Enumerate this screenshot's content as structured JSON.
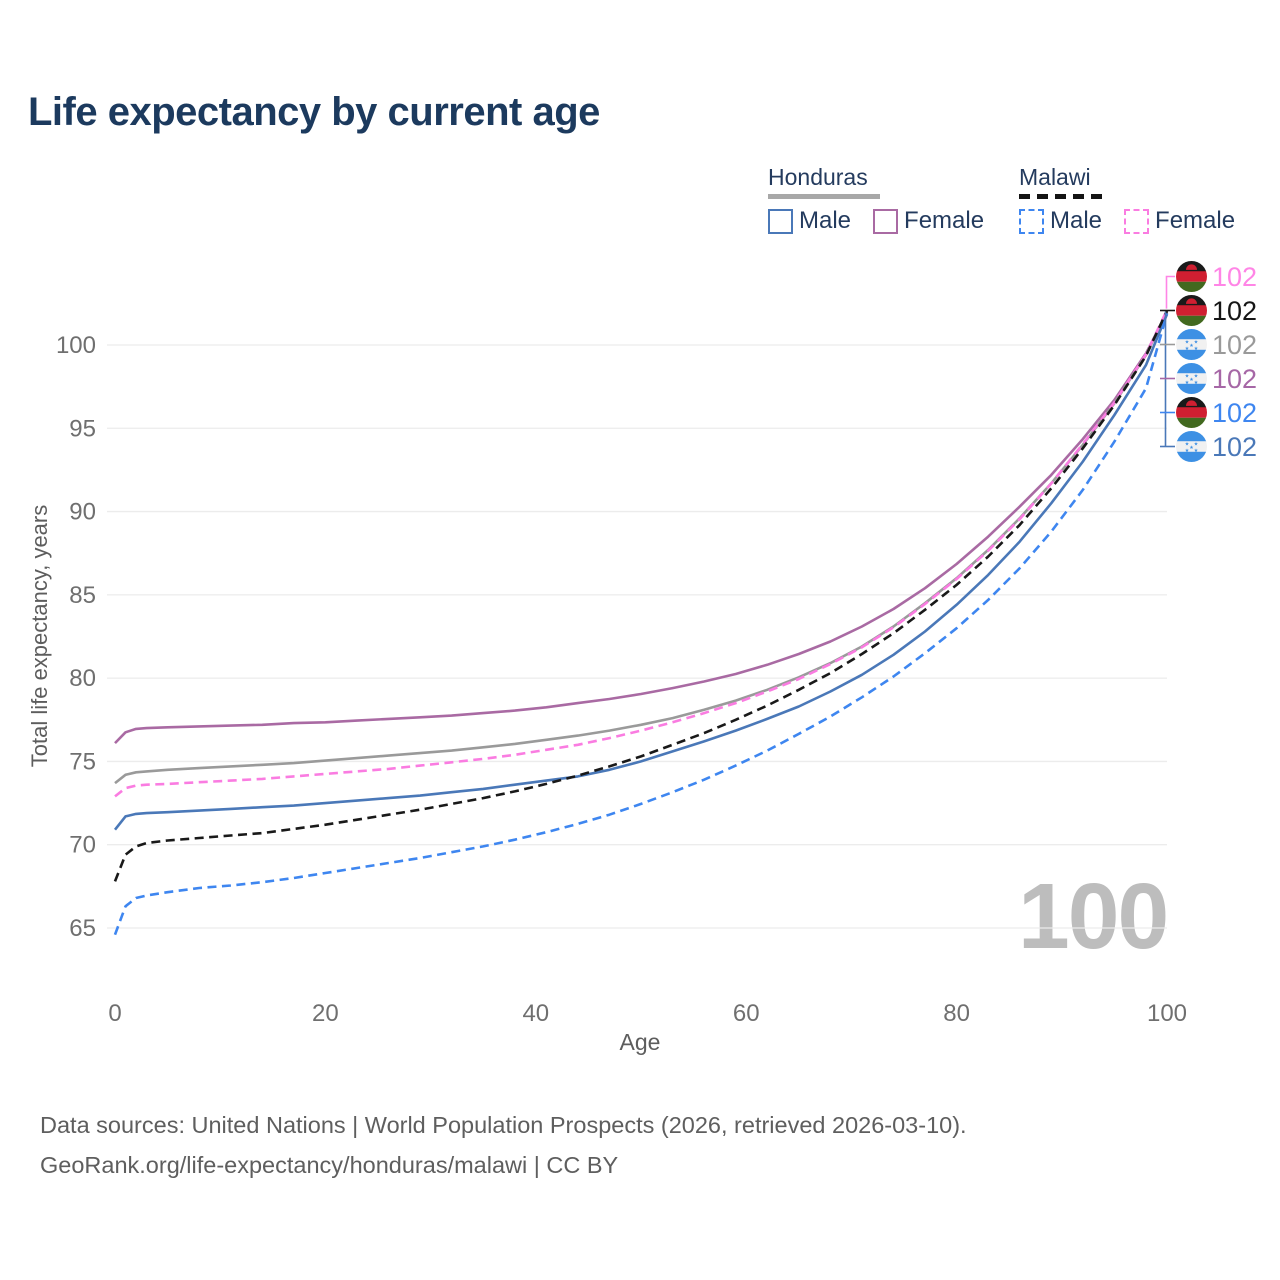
{
  "title": "Life expectancy by current age",
  "legend": {
    "groups": [
      {
        "label": "Honduras",
        "line_style": "solid",
        "underline_color": "#a8a8a8",
        "items": [
          {
            "label": "Male",
            "series": "honduras_male"
          },
          {
            "label": "Female",
            "series": "honduras_female"
          }
        ]
      },
      {
        "label": "Malawi",
        "line_style": "dashed",
        "underline_color": "#141414",
        "items": [
          {
            "label": "Male",
            "series": "malawi_male"
          },
          {
            "label": "Female",
            "series": "malawi_female"
          }
        ]
      }
    ]
  },
  "watermark_age": "100",
  "end_labels": [
    {
      "series": "malawi_female",
      "value": "102",
      "flag": "malawi",
      "color": "#ff85e6"
    },
    {
      "series": "malawi_all",
      "value": "102",
      "flag": "malawi",
      "color": "#161616"
    },
    {
      "series": "honduras_all",
      "value": "102",
      "flag": "honduras",
      "color": "#9a9a9a"
    },
    {
      "series": "honduras_female",
      "value": "102",
      "flag": "honduras",
      "color": "#a667a6"
    },
    {
      "series": "malawi_male",
      "value": "102",
      "flag": "malawi",
      "color": "#3e86f0"
    },
    {
      "series": "honduras_male",
      "value": "102",
      "flag": "honduras",
      "color": "#4a78b8"
    }
  ],
  "flag_colors": {
    "malawi": {
      "top": "#1a1a1a",
      "middle": "#d01f31",
      "bottom": "#42691f",
      "sun": "#d01f31"
    },
    "honduras": {
      "band": "#3d90e4",
      "middle": "#f1f1f1",
      "stars": "#3d90e4"
    }
  },
  "footer": {
    "line1": "Data sources: United Nations | World Population Prospects (2026, retrieved 2026-03-10).",
    "line2": "GeoRank.org/life-expectancy/honduras/malawi | CC BY"
  },
  "chart_data": {
    "type": "line",
    "title": "Life expectancy by current age",
    "xlabel": "Age",
    "ylabel": "Total life expectancy, years",
    "xlim": [
      0,
      100
    ],
    "ylim": [
      63,
      104
    ],
    "xticks": [
      0,
      20,
      40,
      60,
      80,
      100
    ],
    "yticks": [
      65,
      70,
      75,
      80,
      85,
      90,
      95,
      100
    ],
    "grid": "horizontal",
    "legend_position": "top-right",
    "x": [
      0,
      1,
      2,
      3,
      5,
      8,
      11,
      14,
      17,
      20,
      23,
      26,
      29,
      32,
      35,
      38,
      41,
      44,
      47,
      50,
      53,
      56,
      59,
      62,
      65,
      68,
      71,
      74,
      77,
      80,
      83,
      86,
      89,
      92,
      95,
      98,
      100
    ],
    "series": [
      {
        "id": "honduras_female",
        "name": "Honduras Female",
        "country": "Honduras",
        "sex": "Female",
        "color": "#a96aa3",
        "dash": "solid",
        "end_value": 102,
        "values": [
          76.1,
          76.75,
          76.95,
          77.0,
          77.05,
          77.1,
          77.15,
          77.2,
          77.3,
          77.35,
          77.45,
          77.55,
          77.65,
          77.75,
          77.9,
          78.05,
          78.25,
          78.5,
          78.75,
          79.05,
          79.4,
          79.8,
          80.25,
          80.8,
          81.45,
          82.2,
          83.1,
          84.15,
          85.4,
          86.85,
          88.5,
          90.3,
          92.2,
          94.35,
          96.7,
          99.5,
          101.95
        ]
      },
      {
        "id": "honduras_all",
        "name": "Honduras Both sexes",
        "country": "Honduras",
        "sex": "Both",
        "color": "#9a9a9a",
        "dash": "solid",
        "end_value": 102,
        "values": [
          73.7,
          74.2,
          74.35,
          74.4,
          74.5,
          74.6,
          74.7,
          74.8,
          74.9,
          75.05,
          75.2,
          75.35,
          75.5,
          75.65,
          75.85,
          76.05,
          76.3,
          76.55,
          76.85,
          77.2,
          77.6,
          78.1,
          78.65,
          79.3,
          80.05,
          80.9,
          81.9,
          83.1,
          84.5,
          86.0,
          87.7,
          89.6,
          91.7,
          94.0,
          96.5,
          99.4,
          102.0
        ]
      },
      {
        "id": "malawi_female",
        "name": "Malawi Female",
        "country": "Malawi",
        "sex": "Female",
        "color": "#fa7ce1",
        "dash": "dashed",
        "end_value": 102,
        "values": [
          72.9,
          73.4,
          73.55,
          73.6,
          73.65,
          73.75,
          73.85,
          73.95,
          74.1,
          74.25,
          74.4,
          74.55,
          74.75,
          74.95,
          75.15,
          75.4,
          75.7,
          76.0,
          76.4,
          76.85,
          77.35,
          77.9,
          78.5,
          79.2,
          79.95,
          80.85,
          81.85,
          83.05,
          84.45,
          85.95,
          87.65,
          89.55,
          91.7,
          94.05,
          96.55,
          99.45,
          102.1
        ]
      },
      {
        "id": "honduras_male",
        "name": "Honduras Male",
        "country": "Honduras",
        "sex": "Male",
        "color": "#4a78b8",
        "dash": "solid",
        "end_value": 102,
        "values": [
          70.9,
          71.7,
          71.85,
          71.9,
          71.95,
          72.05,
          72.15,
          72.25,
          72.35,
          72.5,
          72.65,
          72.8,
          72.95,
          73.15,
          73.35,
          73.6,
          73.85,
          74.1,
          74.5,
          75.0,
          75.6,
          76.2,
          76.85,
          77.55,
          78.3,
          79.2,
          80.2,
          81.4,
          82.8,
          84.4,
          86.2,
          88.2,
          90.5,
          93.0,
          95.8,
          98.8,
          101.85
        ]
      },
      {
        "id": "malawi_all",
        "name": "Malawi Both sexes",
        "country": "Malawi",
        "sex": "Both",
        "color": "#191919",
        "dash": "dashed",
        "end_value": 102,
        "values": [
          67.8,
          69.4,
          69.9,
          70.1,
          70.25,
          70.4,
          70.55,
          70.7,
          70.95,
          71.2,
          71.5,
          71.8,
          72.1,
          72.45,
          72.8,
          73.2,
          73.65,
          74.15,
          74.7,
          75.3,
          76.0,
          76.7,
          77.5,
          78.35,
          79.3,
          80.3,
          81.45,
          82.7,
          84.1,
          85.6,
          87.3,
          89.2,
          91.4,
          93.8,
          96.4,
          99.35,
          102.05
        ]
      },
      {
        "id": "malawi_male",
        "name": "Malawi Male",
        "country": "Malawi",
        "sex": "Male",
        "color": "#3e86f0",
        "dash": "dashed",
        "end_value": 102,
        "values": [
          64.6,
          66.3,
          66.8,
          66.95,
          67.15,
          67.4,
          67.55,
          67.75,
          68.0,
          68.3,
          68.6,
          68.9,
          69.2,
          69.55,
          69.9,
          70.3,
          70.75,
          71.25,
          71.8,
          72.45,
          73.15,
          73.9,
          74.75,
          75.65,
          76.65,
          77.7,
          78.85,
          80.1,
          81.5,
          83.0,
          84.7,
          86.6,
          88.8,
          91.3,
          94.2,
          97.4,
          101.9
        ]
      }
    ]
  }
}
